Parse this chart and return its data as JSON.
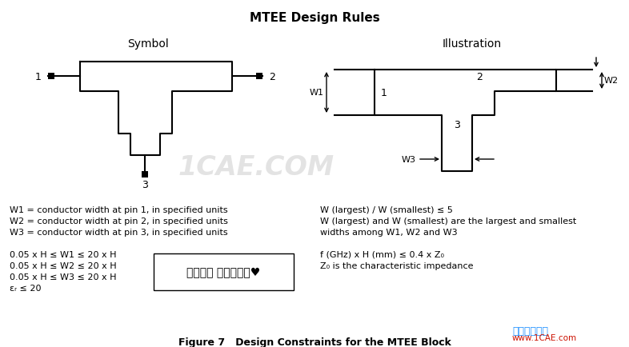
{
  "title": "MTEE Design Rules",
  "bg_color": "#ffffff",
  "symbol_label": "Symbol",
  "illustration_label": "Illustration",
  "text_left": [
    "W1 = conductor width at pin 1, in specified units",
    "W2 = conductor width at pin 2, in specified units",
    "W3 = conductor width at pin 3, in specified units"
  ],
  "text_left2": [
    "0.05 x H ≤ W1 ≤ 20 x H",
    "0.05 x H ≤ W2 ≤ 20 x H",
    "0.05 x H ≤ W3 ≤ 20 x H",
    "εᵣ ≤ 20"
  ],
  "text_right": [
    "W (largest) / W (smallest) ≤ 5",
    "W (largest) and W (smallest) are the largest and smallest",
    "widths among W1, W2 and W3"
  ],
  "text_right2": [
    "f (GHz) x H (mm) ≤ 0.4 x Z₀",
    "Z₀ is the characteristic impedance"
  ],
  "figure_caption": "Figure 7   Design Constraints for the MTEE Block",
  "watermark1": "1CAE.COM",
  "box_label": "公众号： 射频百花潭♥"
}
